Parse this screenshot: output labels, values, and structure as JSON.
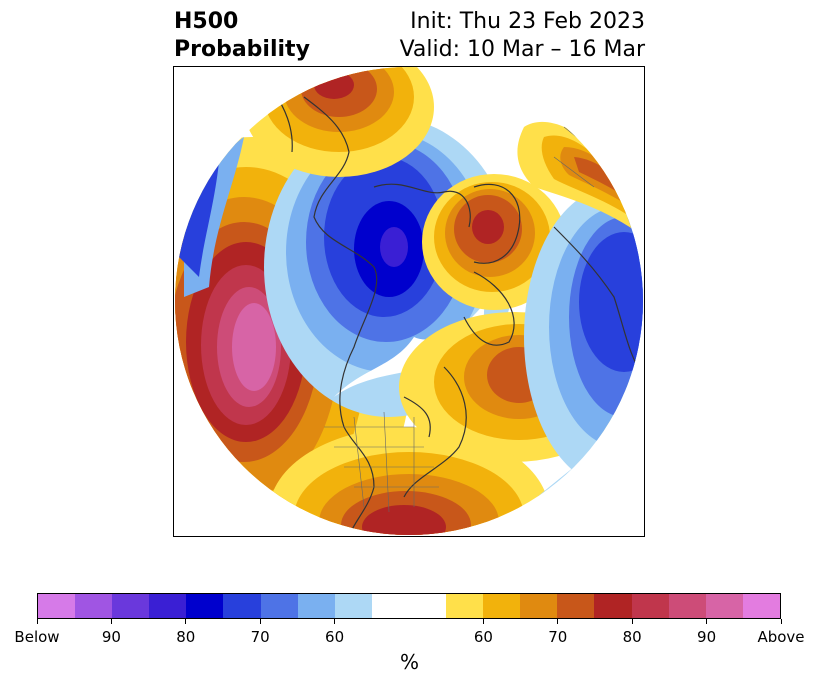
{
  "title": {
    "left_line1": "H500",
    "left_line2": "Probability",
    "right_line1": "Init: Thu 23 Feb 2023",
    "right_line2": "Valid: 10 Mar – 16 Mar"
  },
  "colorbar": {
    "colors": [
      "#d67ae8",
      "#a055e3",
      "#6a38dc",
      "#3a1fd4",
      "#0000cd",
      "#2840dc",
      "#4e73e6",
      "#7ab0f0",
      "#add8f5",
      "#ffffff",
      "#ffe04a",
      "#f2b20c",
      "#e08a10",
      "#c8571a",
      "#b02424",
      "#c0364c",
      "#cd4c78",
      "#d764a6",
      "#e37ce0"
    ],
    "tick_labels": [
      "Below",
      "90",
      "80",
      "70",
      "60",
      "60",
      "70",
      "80",
      "90",
      "Above"
    ],
    "unit": "%"
  },
  "map": {
    "projection": "north-polar-stereographic",
    "field": "H500 probability anomaly",
    "anomaly_regions": [
      {
        "name": "North Pacific / west coast",
        "sign": "above",
        "peak_category": "Above"
      },
      {
        "name": "Greenland / Labrador",
        "sign": "above",
        "peak_category": "80"
      },
      {
        "name": "Southeastern United States",
        "sign": "above",
        "peak_category": "80"
      },
      {
        "name": "Central North Atlantic",
        "sign": "above",
        "peak_category": "70"
      },
      {
        "name": "Eastern Siberia / Arctic",
        "sign": "below",
        "peak_category": "80"
      },
      {
        "name": "Northern Europe / Scandinavia",
        "sign": "below",
        "peak_category": "70"
      },
      {
        "name": "Far North Atlantic / Alaska edge",
        "sign": "below",
        "peak_category": "60"
      }
    ]
  }
}
